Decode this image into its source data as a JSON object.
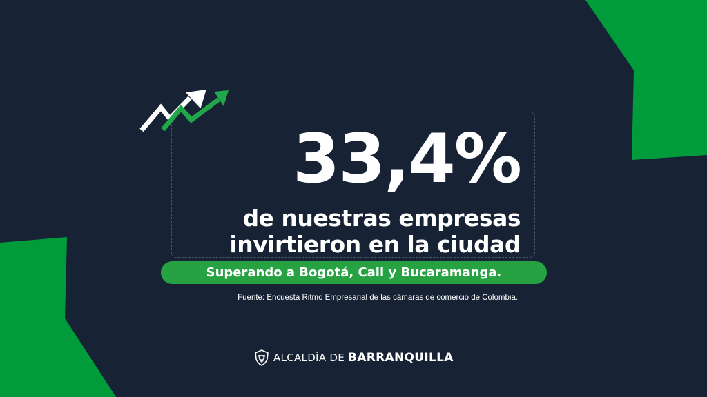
{
  "colors": {
    "background": "#172335",
    "accent_green": "#009c3b",
    "pill_green": "#27a243",
    "text": "#ffffff"
  },
  "headline": {
    "figure": "33,4%",
    "line1": "de nuestras empresas",
    "line2": "invirtieron en la ciudad"
  },
  "highlight": "Superando a Bogotá, Cali y Bucaramanga.",
  "source": "Fuente: Encuesta Ritmo Empresarial de las cámaras de comercio de Colombia.",
  "logo": {
    "icon": "coat-of-arms-icon",
    "prefix": "ALCALDÍA DE",
    "name": "BARRANQUILLA"
  },
  "decor": {
    "trend_icon": "rising-arrows-icon"
  }
}
